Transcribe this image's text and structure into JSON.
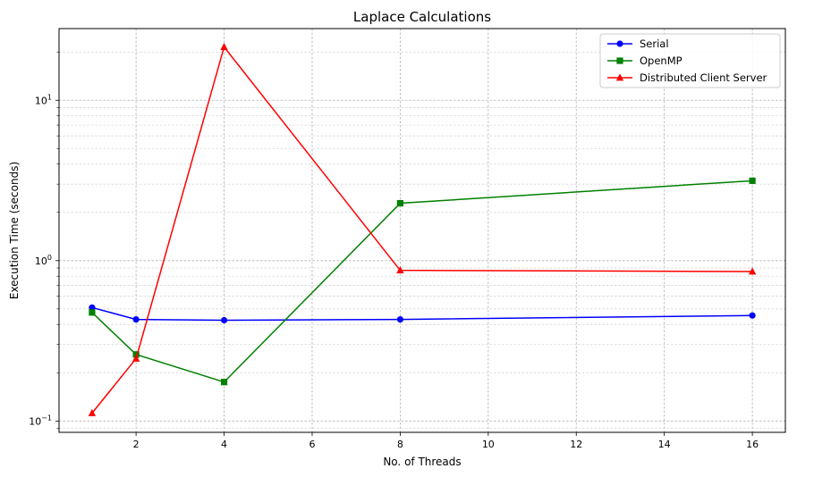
{
  "chart_data": {
    "type": "line",
    "title": "Laplace Calculations",
    "xlabel": "No. of Threads",
    "ylabel": "Execution Time (seconds)",
    "yscale": "log",
    "xlim": [
      0.25,
      16.75
    ],
    "ylim": [
      0.085,
      28
    ],
    "grid": true,
    "legend_position": "top-right",
    "x_ticks": [
      2,
      4,
      6,
      8,
      10,
      12,
      14,
      16
    ],
    "y_major_ticks": [
      {
        "value": 0.1,
        "base": "10",
        "exp": "−1"
      },
      {
        "value": 1,
        "base": "10",
        "exp": "0"
      },
      {
        "value": 10,
        "base": "10",
        "exp": "1"
      }
    ],
    "x": [
      1,
      2,
      4,
      8,
      16
    ],
    "series": [
      {
        "name": "Serial",
        "color": "#0000ff",
        "marker": "circle",
        "values": [
          0.51,
          0.43,
          0.425,
          0.43,
          0.455
        ]
      },
      {
        "name": "OpenMP",
        "color": "#008000",
        "marker": "square",
        "values": [
          0.475,
          0.26,
          0.175,
          2.28,
          3.15
        ]
      },
      {
        "name": "Distributed Client Server",
        "color": "#ff0000",
        "marker": "triangle",
        "values": [
          0.112,
          0.245,
          21.5,
          0.87,
          0.855
        ]
      }
    ]
  }
}
